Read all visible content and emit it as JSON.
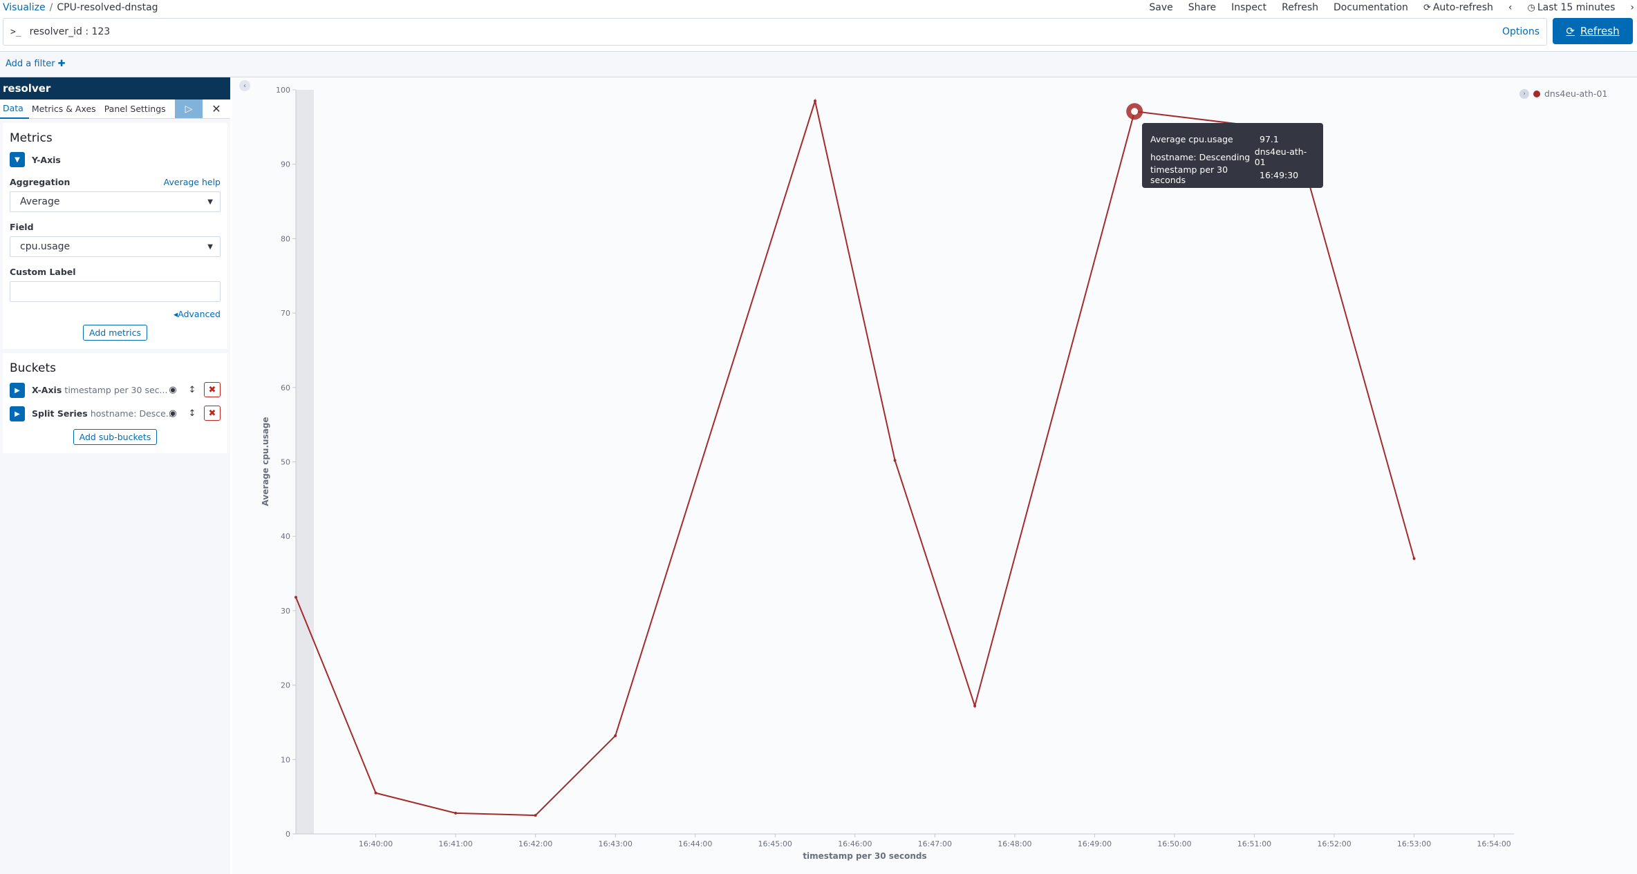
{
  "breadcrumb": {
    "parent": "Visualize",
    "separator": "/",
    "current": "CPU-resolved-dnstag"
  },
  "topnav": {
    "save": "Save",
    "share": "Share",
    "inspect": "Inspect",
    "refresh": "Refresh",
    "documentation": "Documentation",
    "auto_refresh": "Auto-refresh",
    "time_range": "Last 15 minutes"
  },
  "query": {
    "prompt": ">_",
    "value": "resolver_id : 123",
    "options": "Options",
    "refresh_button": "Refresh"
  },
  "filter": {
    "add_label": "Add a filter"
  },
  "sidebar": {
    "index_title": "resolver",
    "tabs": [
      "Data",
      "Metrics & Axes",
      "Panel Settings"
    ],
    "metrics": {
      "heading": "Metrics",
      "agg_name": "Y-Axis",
      "aggregation_label": "Aggregation",
      "aggregation_help": "Average help",
      "aggregation_value": "Average",
      "field_label": "Field",
      "field_value": "cpu.usage",
      "custom_label": "Custom Label",
      "custom_label_value": "",
      "advanced": "Advanced",
      "add_metrics": "Add metrics"
    },
    "buckets": {
      "heading": "Buckets",
      "items": [
        {
          "name": "X-Axis",
          "desc": "timestamp per 30 sec..."
        },
        {
          "name": "Split Series",
          "desc": "hostname: Desce..."
        }
      ],
      "add_sub_buckets": "Add sub-buckets"
    }
  },
  "legend": {
    "series": "dns4eu-ath-01",
    "color": "#a52a2a"
  },
  "tooltip": {
    "rows": [
      {
        "key": "Average cpu.usage",
        "value": "97.1"
      },
      {
        "key": "hostname: Descending",
        "value": "dns4eu-ath-01"
      },
      {
        "key": "timestamp per 30 seconds",
        "value": "16:49:30"
      }
    ]
  },
  "chart_data": {
    "type": "line",
    "xlabel": "timestamp per 30 seconds",
    "ylabel": "Average cpu.usage",
    "ylim": [
      0,
      100
    ],
    "y_ticks": [
      0,
      10,
      20,
      30,
      40,
      50,
      60,
      70,
      80,
      90,
      100
    ],
    "x_ticks": [
      "16:40:00",
      "16:41:00",
      "16:42:00",
      "16:43:00",
      "16:44:00",
      "16:45:00",
      "16:46:00",
      "16:47:00",
      "16:48:00",
      "16:49:00",
      "16:50:00",
      "16:51:00",
      "16:52:00",
      "16:53:00",
      "16:54:00"
    ],
    "xlim": [
      "16:39:00",
      "16:54:15"
    ],
    "series": [
      {
        "name": "dns4eu-ath-01",
        "x": [
          "16:39:00",
          "16:40:00",
          "16:41:00",
          "16:42:00",
          "16:43:00",
          "16:45:30",
          "16:46:30",
          "16:47:30",
          "16:49:30",
          "16:51:30",
          "16:53:00"
        ],
        "y": [
          31.8,
          5.5,
          2.8,
          2.5,
          13.2,
          98.5,
          50.2,
          17.2,
          97.1,
          94.5,
          37.0
        ]
      }
    ],
    "highlight": {
      "x": "16:49:30",
      "y": 97.1
    },
    "grid": false
  }
}
